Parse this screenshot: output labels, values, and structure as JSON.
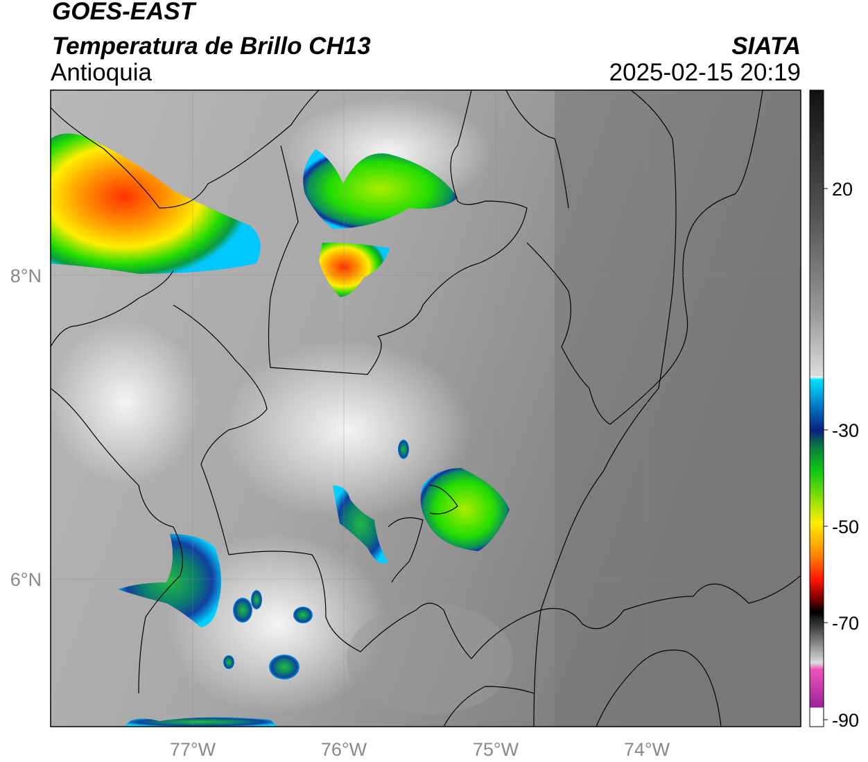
{
  "header": {
    "satellite": "GOES-EAST",
    "product": "Temperatura de Brillo CH13",
    "region": "Antioquia",
    "source": "SIATA",
    "datetime": "2025-02-15 20:19"
  },
  "map": {
    "lon_labels": [
      "77°W",
      "76°W",
      "75°W",
      "74°W"
    ],
    "lat_labels": [
      "8°N",
      "6°N"
    ]
  },
  "colorbar": {
    "labels": [
      "20",
      "-30",
      "-50",
      "-70",
      "-90"
    ]
  }
}
